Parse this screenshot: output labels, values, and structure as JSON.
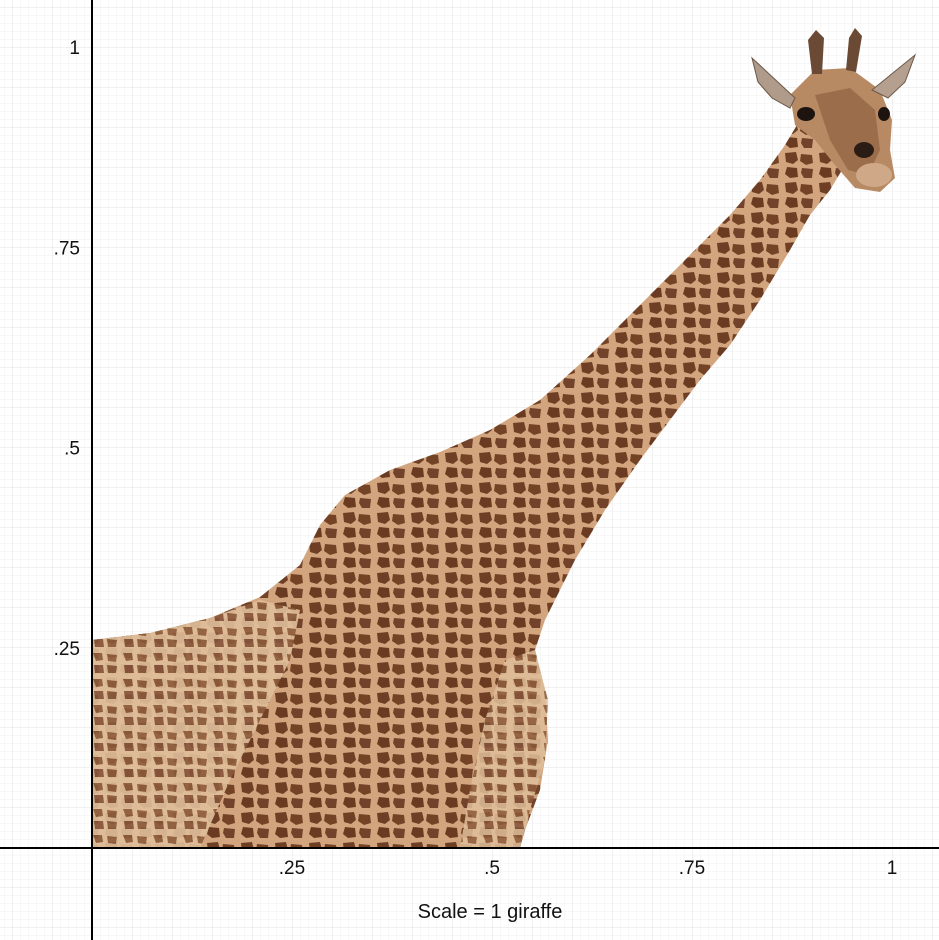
{
  "x_ticks": [
    {
      "value": 0.25,
      "label": ".25"
    },
    {
      "value": 0.5,
      "label": ".5"
    },
    {
      "value": 0.75,
      "label": ".75"
    },
    {
      "value": 1,
      "label": "1"
    }
  ],
  "y_ticks": [
    {
      "value": 0.25,
      "label": ".25"
    },
    {
      "value": 0.5,
      "label": ".5"
    },
    {
      "value": 0.75,
      "label": ".75"
    },
    {
      "value": 1,
      "label": "1"
    }
  ],
  "caption": "Scale = 1 giraffe",
  "grid": true,
  "subject": "giraffe-photo",
  "colors": {
    "grid_minor": "#eeeeee",
    "grid_major": "#dddddd",
    "axis": "#000000",
    "giraffe_base": "#c9a07a",
    "giraffe_spots": "#6e3f24"
  }
}
